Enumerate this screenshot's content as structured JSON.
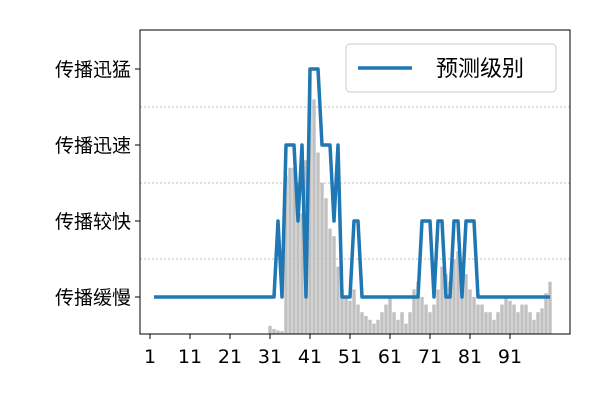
{
  "chart_data": {
    "type": "line",
    "title": "",
    "xlabel": "",
    "ylabel": "",
    "y_categories": [
      "传播缓慢",
      "传播较快",
      "传播迅速",
      "传播迅猛"
    ],
    "x_ticks": [
      1,
      11,
      21,
      31,
      41,
      51,
      61,
      71,
      81,
      91
    ],
    "xlim": [
      -1.5,
      106
    ],
    "legend": {
      "position": "top-right",
      "entries": [
        "预测级别"
      ]
    },
    "grid": "horizontal dashed lines between levels",
    "colors": {
      "line": "#1f77b4",
      "bars": "#c0c0c0",
      "grid": "#808080"
    },
    "series": [
      {
        "name": "预测级别",
        "x": [
          2,
          3,
          4,
          5,
          6,
          7,
          8,
          9,
          10,
          11,
          12,
          13,
          14,
          15,
          16,
          17,
          18,
          19,
          20,
          21,
          22,
          23,
          24,
          25,
          26,
          27,
          28,
          29,
          30,
          31,
          32,
          33,
          34,
          35,
          36,
          37,
          38,
          39,
          40,
          41,
          42,
          43,
          44,
          45,
          46,
          47,
          48,
          49,
          50,
          51,
          52,
          53,
          54,
          55,
          56,
          57,
          58,
          59,
          60,
          61,
          62,
          63,
          64,
          65,
          66,
          67,
          68,
          69,
          70,
          71,
          72,
          73,
          74,
          75,
          76,
          77,
          78,
          79,
          80,
          81,
          82,
          83,
          84,
          85,
          86,
          87,
          88,
          89,
          90,
          91,
          92,
          93,
          94,
          95,
          96,
          97,
          98,
          99,
          100,
          101
        ],
        "values": [
          0,
          0,
          0,
          0,
          0,
          0,
          0,
          0,
          0,
          0,
          0,
          0,
          0,
          0,
          0,
          0,
          0,
          0,
          0,
          0,
          0,
          0,
          0,
          0,
          0,
          0,
          0,
          0,
          0,
          0,
          0,
          1,
          0,
          2,
          2,
          2,
          1,
          2,
          0,
          3,
          3,
          3,
          2,
          2,
          2,
          1,
          2,
          0,
          0,
          0,
          1,
          1,
          0,
          0,
          0,
          0,
          0,
          0,
          0,
          0,
          0,
          0,
          0,
          0,
          0,
          0,
          0,
          1,
          1,
          1,
          0,
          1,
          1,
          0,
          0,
          1,
          1,
          0,
          1,
          1,
          1,
          0,
          0,
          0,
          0,
          0,
          0,
          0,
          0,
          0,
          0,
          0,
          0,
          0,
          0,
          0,
          0,
          0,
          0,
          0
        ]
      },
      {
        "name": "",
        "type": "bar",
        "x": [
          31,
          32,
          33,
          34,
          35,
          36,
          37,
          38,
          39,
          40,
          41,
          42,
          43,
          44,
          45,
          46,
          47,
          48,
          49,
          50,
          51,
          52,
          53,
          54,
          55,
          56,
          57,
          58,
          59,
          60,
          61,
          62,
          63,
          64,
          65,
          66,
          67,
          68,
          69,
          70,
          71,
          72,
          73,
          74,
          75,
          76,
          77,
          78,
          79,
          80,
          81,
          82,
          83,
          84,
          85,
          86,
          87,
          88,
          89,
          90,
          91,
          92,
          93,
          94,
          95,
          96,
          97,
          98,
          99,
          100,
          101
        ],
        "values": [
          0.12,
          0.08,
          0.06,
          0.05,
          2.1,
          2.2,
          2.2,
          2.0,
          1.6,
          2.3,
          3.4,
          3.1,
          2.4,
          2.0,
          1.8,
          1.4,
          1.3,
          0.9,
          0.6,
          0.5,
          0.45,
          0.6,
          0.4,
          0.3,
          0.25,
          0.2,
          0.15,
          0.2,
          0.3,
          0.4,
          0.5,
          0.3,
          0.2,
          0.3,
          0.15,
          0.3,
          0.6,
          0.7,
          0.5,
          0.4,
          0.3,
          0.4,
          0.6,
          0.9,
          0.8,
          0.7,
          1.0,
          1.1,
          0.9,
          0.8,
          0.6,
          0.5,
          0.4,
          0.4,
          0.3,
          0.3,
          0.2,
          0.3,
          0.4,
          0.5,
          0.45,
          0.4,
          0.3,
          0.4,
          0.4,
          0.3,
          0.2,
          0.3,
          0.35,
          0.55,
          0.7
        ]
      }
    ]
  }
}
